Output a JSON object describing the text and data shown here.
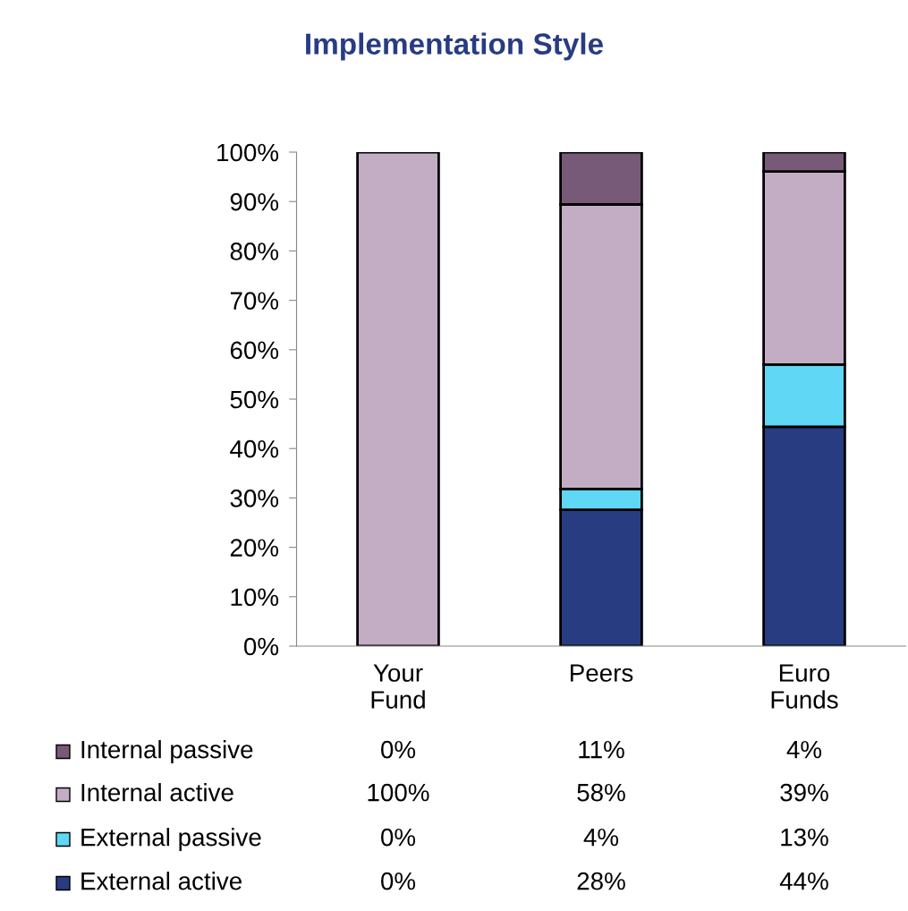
{
  "chart_data": {
    "type": "bar",
    "title": "Implementation Style",
    "stacked": true,
    "categories": [
      "Your\nFund",
      "Peers",
      "Euro\nFunds"
    ],
    "series": [
      {
        "name": "External active",
        "color": "#283c82",
        "values": [
          0,
          27.6,
          44.4
        ],
        "value_labels": [
          "0%",
          "28%",
          "44%"
        ]
      },
      {
        "name": "External passive",
        "color": "#5fd7f5",
        "values": [
          0,
          4.2,
          12.6
        ],
        "value_labels": [
          "0%",
          "4%",
          "13%"
        ]
      },
      {
        "name": "Internal active",
        "color": "#c3adc4",
        "values": [
          100,
          57.6,
          39.1
        ],
        "value_labels": [
          "100%",
          "58%",
          "39%"
        ]
      },
      {
        "name": "Internal passive",
        "color": "#775a77",
        "values": [
          0,
          10.6,
          3.9
        ],
        "value_labels": [
          "0%",
          "11%",
          "4%"
        ]
      }
    ],
    "ylim": [
      0,
      100
    ],
    "yticks": [
      {
        "value": 0,
        "label": "0%"
      },
      {
        "value": 10,
        "label": "10%"
      },
      {
        "value": 20,
        "label": "20%"
      },
      {
        "value": 30,
        "label": "30%"
      },
      {
        "value": 40,
        "label": "40%"
      },
      {
        "value": 50,
        "label": "50%"
      },
      {
        "value": 60,
        "label": "60%"
      },
      {
        "value": 70,
        "label": "70%"
      },
      {
        "value": 80,
        "label": "80%"
      },
      {
        "value": 90,
        "label": "90%"
      },
      {
        "value": 100,
        "label": "100%"
      }
    ],
    "grid": false,
    "legend": "bottom"
  }
}
